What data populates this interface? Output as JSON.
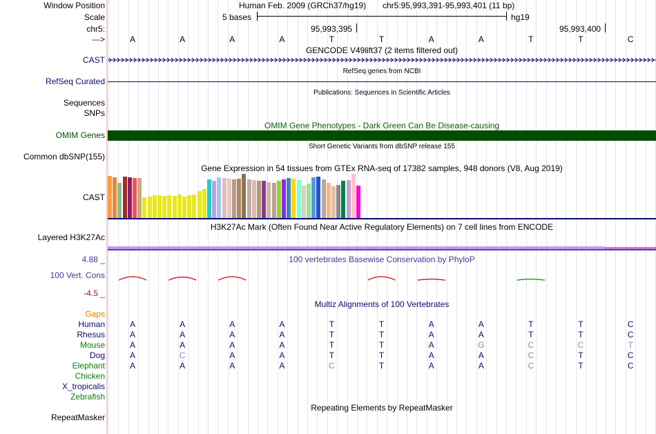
{
  "colors": {
    "navy": "#0a0a6e",
    "dark_green": "#004d00",
    "omim_green": "#0b5c0b",
    "phylo_blue": "#3b3b9a",
    "neg_red": "#8b1a1a",
    "gaps_orange": "#d08000",
    "bright_green": "#0a7a0a",
    "gray_base": "#8888aa"
  },
  "labels": {
    "window_position": "Window Position",
    "scale": "Scale",
    "chr": "chr5:",
    "arrow": "--->",
    "cast_gencode": "CAST",
    "refseq": "RefSeq Curated",
    "sequences": "Sequences",
    "snps": "SNPs",
    "omim": "OMIM Genes",
    "dbsnp": "Common dbSNP(155)",
    "cast_gtex": "CAST",
    "h3k27ac": "Layered H3K27Ac",
    "cons_top": "4.88 _",
    "cons": "100 Vert. Cons",
    "cons_bottom": "-4.5 _",
    "gaps": "Gaps",
    "repeatmasker": "RepeatMasker"
  },
  "header": {
    "assembly": "Human Feb. 2009 (GRCh37/hg19)",
    "position": "chr5:95,993,391-95,993,401 (11 bp)",
    "scale_text": "5 bases",
    "scale_db": "hg19",
    "coord_1": "95,993,395",
    "coord_2": "95,993,400"
  },
  "sequence": [
    "A",
    "A",
    "A",
    "A",
    "T",
    "T",
    "A",
    "A",
    "T",
    "T",
    "C"
  ],
  "tracks": {
    "gencode": "GENCODE V49lift37 (2 items filtered out)",
    "refseq": "RefSeq genes from NCBI",
    "publications": "Publications: Sequences in Scientific Articles",
    "omim": "OMIM Gene Phenotypes - Dark Green Can Be Disease-causing",
    "dbsnp": "Short Genetic Variants from dbSNP release 155",
    "gtex": "Gene Expression in 54 tissues from GTEx RNA-seq of 17382 samples, 948 donors (V8, Aug 2019)",
    "h3k27ac": "H3K27Ac Mark (Often Found Near Active Regulatory Elements) on 7 cell lines from ENCODE",
    "phylop": "100 vertebrates Basewise Conservation by PhyloP",
    "multiz": "Multiz Alignments of 100 Vertebrates",
    "repeatmasker": "Repeating Elements by RepeatMasker"
  },
  "gtex_bars": [
    {
      "h": 0.95,
      "c": "#f5a142"
    },
    {
      "h": 0.92,
      "c": "#e48a3d"
    },
    {
      "h": 0.8,
      "c": "#8fbc8f"
    },
    {
      "h": 0.93,
      "c": "#a52a2a"
    },
    {
      "h": 0.92,
      "c": "#8b1a6b"
    },
    {
      "h": 0.91,
      "c": "#ef5350"
    },
    {
      "h": 0.9,
      "c": "#c8a888"
    },
    {
      "h": 0.47,
      "c": "#e8e81c"
    },
    {
      "h": 0.49,
      "c": "#e8e81c"
    },
    {
      "h": 0.51,
      "c": "#e8e81c"
    },
    {
      "h": 0.51,
      "c": "#e8e81c"
    },
    {
      "h": 0.5,
      "c": "#e8e81c"
    },
    {
      "h": 0.52,
      "c": "#e8e81c"
    },
    {
      "h": 0.5,
      "c": "#e8e81c"
    },
    {
      "h": 0.53,
      "c": "#e8e81c"
    },
    {
      "h": 0.48,
      "c": "#e8e81c"
    },
    {
      "h": 0.51,
      "c": "#e8e81c"
    },
    {
      "h": 0.53,
      "c": "#e8e81c"
    },
    {
      "h": 0.61,
      "c": "#e8e81c"
    },
    {
      "h": 0.65,
      "c": "#e8e81c"
    },
    {
      "h": 0.87,
      "c": "#22cccc"
    },
    {
      "h": 0.84,
      "c": "#bba0e6"
    },
    {
      "h": 0.92,
      "c": "#a8c4e6"
    },
    {
      "h": 0.9,
      "c": "#ddc0b8"
    },
    {
      "h": 0.89,
      "c": "#e8c8c0"
    },
    {
      "h": 0.88,
      "c": "#bb9988"
    },
    {
      "h": 0.89,
      "c": "#aa8866"
    },
    {
      "h": 1.0,
      "c": "#8b7355"
    },
    {
      "h": 0.87,
      "c": "#bbb0a0"
    },
    {
      "h": 0.86,
      "c": "#ddb8b0"
    },
    {
      "h": 0.85,
      "c": "#aa9977"
    },
    {
      "h": 0.84,
      "c": "#8b3a8b"
    },
    {
      "h": 0.82,
      "c": "#cfb5a8"
    },
    {
      "h": 0.8,
      "c": "#bba090"
    },
    {
      "h": 0.85,
      "c": "#9acd32"
    },
    {
      "h": 0.88,
      "c": "#8a2be2"
    },
    {
      "h": 0.9,
      "c": "#4682b4"
    },
    {
      "h": 0.89,
      "c": "#ffd700"
    },
    {
      "h": 0.86,
      "c": "#7fffd4"
    },
    {
      "h": 0.73,
      "c": "#d8d0c0"
    },
    {
      "h": 0.78,
      "c": "#98e098"
    },
    {
      "h": 0.92,
      "c": "#5599dd"
    },
    {
      "h": 0.93,
      "c": "#2255cc"
    },
    {
      "h": 0.88,
      "c": "#b8a898"
    },
    {
      "h": 0.8,
      "c": "#f0b888"
    },
    {
      "h": 0.72,
      "c": "#e0c0a8"
    },
    {
      "h": 0.75,
      "c": "#8a8a8a"
    },
    {
      "h": 0.84,
      "c": "#008050"
    },
    {
      "h": 0.86,
      "c": "#c8a0c8"
    },
    {
      "h": 1.0,
      "c": "#ffc0cb"
    },
    {
      "h": 0.73,
      "c": "#ff00d0"
    }
  ],
  "cons_peaks": [
    {
      "pos": 0,
      "v": 1.0,
      "c": "#e02020"
    },
    {
      "pos": 1,
      "v": 0.9,
      "c": "#e02020"
    },
    {
      "pos": 2,
      "v": 1.0,
      "c": "#e02020"
    },
    {
      "pos": 3,
      "v": 0.0,
      "c": "#e02020"
    },
    {
      "pos": 4,
      "v": 0.0,
      "c": "#e02020"
    },
    {
      "pos": 5,
      "v": 1.0,
      "c": "#e02020"
    },
    {
      "pos": 6,
      "v": 0.3,
      "c": "#e02020"
    },
    {
      "pos": 7,
      "v": 0.0,
      "c": "#e02020"
    },
    {
      "pos": 8,
      "v": 0.3,
      "c": "#2a9a2a"
    }
  ],
  "species": [
    {
      "name": "Human",
      "color": "#0a0a6e",
      "bases": [
        "A",
        "A",
        "A",
        "A",
        "T",
        "T",
        "A",
        "A",
        "T",
        "T",
        "C"
      ],
      "gray": []
    },
    {
      "name": "Rhesus",
      "color": "#0a0a6e",
      "bases": [
        "A",
        "A",
        "A",
        "A",
        "T",
        "T",
        "A",
        "A",
        "T",
        "T",
        "C"
      ],
      "gray": []
    },
    {
      "name": "Mouse",
      "color": "#0a7a0a",
      "bases": [
        "A",
        "A",
        "A",
        "A",
        "T",
        "T",
        "A",
        "G",
        "C",
        "C",
        "T"
      ],
      "gray": [
        7,
        8,
        9,
        10
      ]
    },
    {
      "name": "Dog",
      "color": "#0a0a6e",
      "bases": [
        "A",
        "C",
        "A",
        "A",
        "T",
        "T",
        "A",
        "A",
        "C",
        "T",
        "C"
      ],
      "gray": [
        1,
        8
      ]
    },
    {
      "name": "Elephant",
      "color": "#0a7a0a",
      "bases": [
        "A",
        "A",
        "A",
        "A",
        "C",
        "T",
        "A",
        "A",
        "C",
        "T",
        "C"
      ],
      "gray": [
        4,
        8
      ]
    },
    {
      "name": "Chicken",
      "color": "#0a7a0a",
      "bases": [],
      "gray": []
    },
    {
      "name": "X_tropicalis",
      "color": "#0a0a6e",
      "bases": [],
      "gray": []
    },
    {
      "name": "Zebrafish",
      "color": "#0a7a0a",
      "bases": [],
      "gray": []
    }
  ]
}
